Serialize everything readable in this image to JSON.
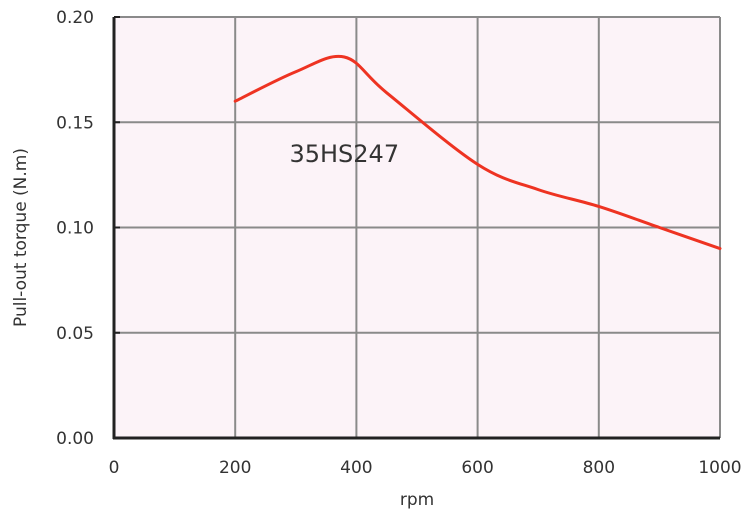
{
  "chart_data": {
    "type": "line",
    "xlabel": "rpm",
    "ylabel": "Pull-out torque  (N.m)",
    "xlim": [
      0,
      1000
    ],
    "ylim": [
      0,
      0.2
    ],
    "xticks": [
      "0",
      "200",
      "400",
      "600",
      "800",
      "1000"
    ],
    "yticks": [
      "0.00",
      "0.05",
      "0.10",
      "0.15",
      "0.20"
    ],
    "grid": true,
    "series": [
      {
        "name": "35HS247",
        "color": "#ee3322",
        "x": [
          200,
          300,
          380,
          450,
          600,
          700,
          800,
          900,
          1000
        ],
        "y": [
          0.16,
          0.174,
          0.181,
          0.164,
          0.13,
          0.118,
          0.11,
          0.1,
          0.09
        ]
      }
    ],
    "annotations": [
      {
        "text": "35HS247",
        "x": 380,
        "y": 0.135
      }
    ],
    "colors": {
      "plot_background": "#fcf3f8",
      "grid": "#8a8a8a",
      "axis": "#222222"
    }
  }
}
